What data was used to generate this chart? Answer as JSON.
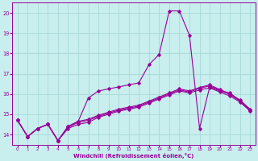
{
  "xlabel": "Windchill (Refroidissement éolien,°C)",
  "background_color": "#c8eeee",
  "grid_color": "#a8d8d8",
  "line_color": "#990099",
  "x_values": [
    0,
    1,
    2,
    3,
    4,
    5,
    6,
    7,
    8,
    9,
    10,
    11,
    12,
    13,
    14,
    15,
    16,
    17,
    18,
    19,
    20,
    21,
    22,
    23
  ],
  "series": [
    [
      14.7,
      13.9,
      14.3,
      14.5,
      13.7,
      14.3,
      14.5,
      14.6,
      14.85,
      15.0,
      15.15,
      15.25,
      15.35,
      15.55,
      15.75,
      15.95,
      16.15,
      16.05,
      16.2,
      16.3,
      16.1,
      15.9,
      15.6,
      15.15
    ],
    [
      14.7,
      13.9,
      14.3,
      14.5,
      13.7,
      14.35,
      14.6,
      14.7,
      14.9,
      15.05,
      15.2,
      15.3,
      15.4,
      15.6,
      15.8,
      16.0,
      16.2,
      16.1,
      16.28,
      16.4,
      16.18,
      15.98,
      15.65,
      15.2
    ],
    [
      14.7,
      13.9,
      14.3,
      14.5,
      13.7,
      14.4,
      14.65,
      14.75,
      14.95,
      15.1,
      15.25,
      15.35,
      15.45,
      15.65,
      15.85,
      16.05,
      16.25,
      16.15,
      16.32,
      16.45,
      16.22,
      16.02,
      15.7,
      15.25
    ],
    [
      14.7,
      13.9,
      14.3,
      14.5,
      13.7,
      14.4,
      14.65,
      15.8,
      16.15,
      16.25,
      16.35,
      16.45,
      16.55,
      17.45,
      17.95,
      20.1,
      20.1,
      18.9,
      14.3,
      16.35,
      16.15,
      16.05,
      15.65,
      15.2
    ]
  ],
  "ylim": [
    13.5,
    20.5
  ],
  "xlim": [
    -0.5,
    23.5
  ],
  "yticks": [
    14,
    15,
    16,
    17,
    18,
    19,
    20
  ],
  "xticks": [
    0,
    1,
    2,
    3,
    4,
    5,
    6,
    7,
    8,
    9,
    10,
    11,
    12,
    13,
    14,
    15,
    16,
    17,
    18,
    19,
    20,
    21,
    22,
    23
  ]
}
